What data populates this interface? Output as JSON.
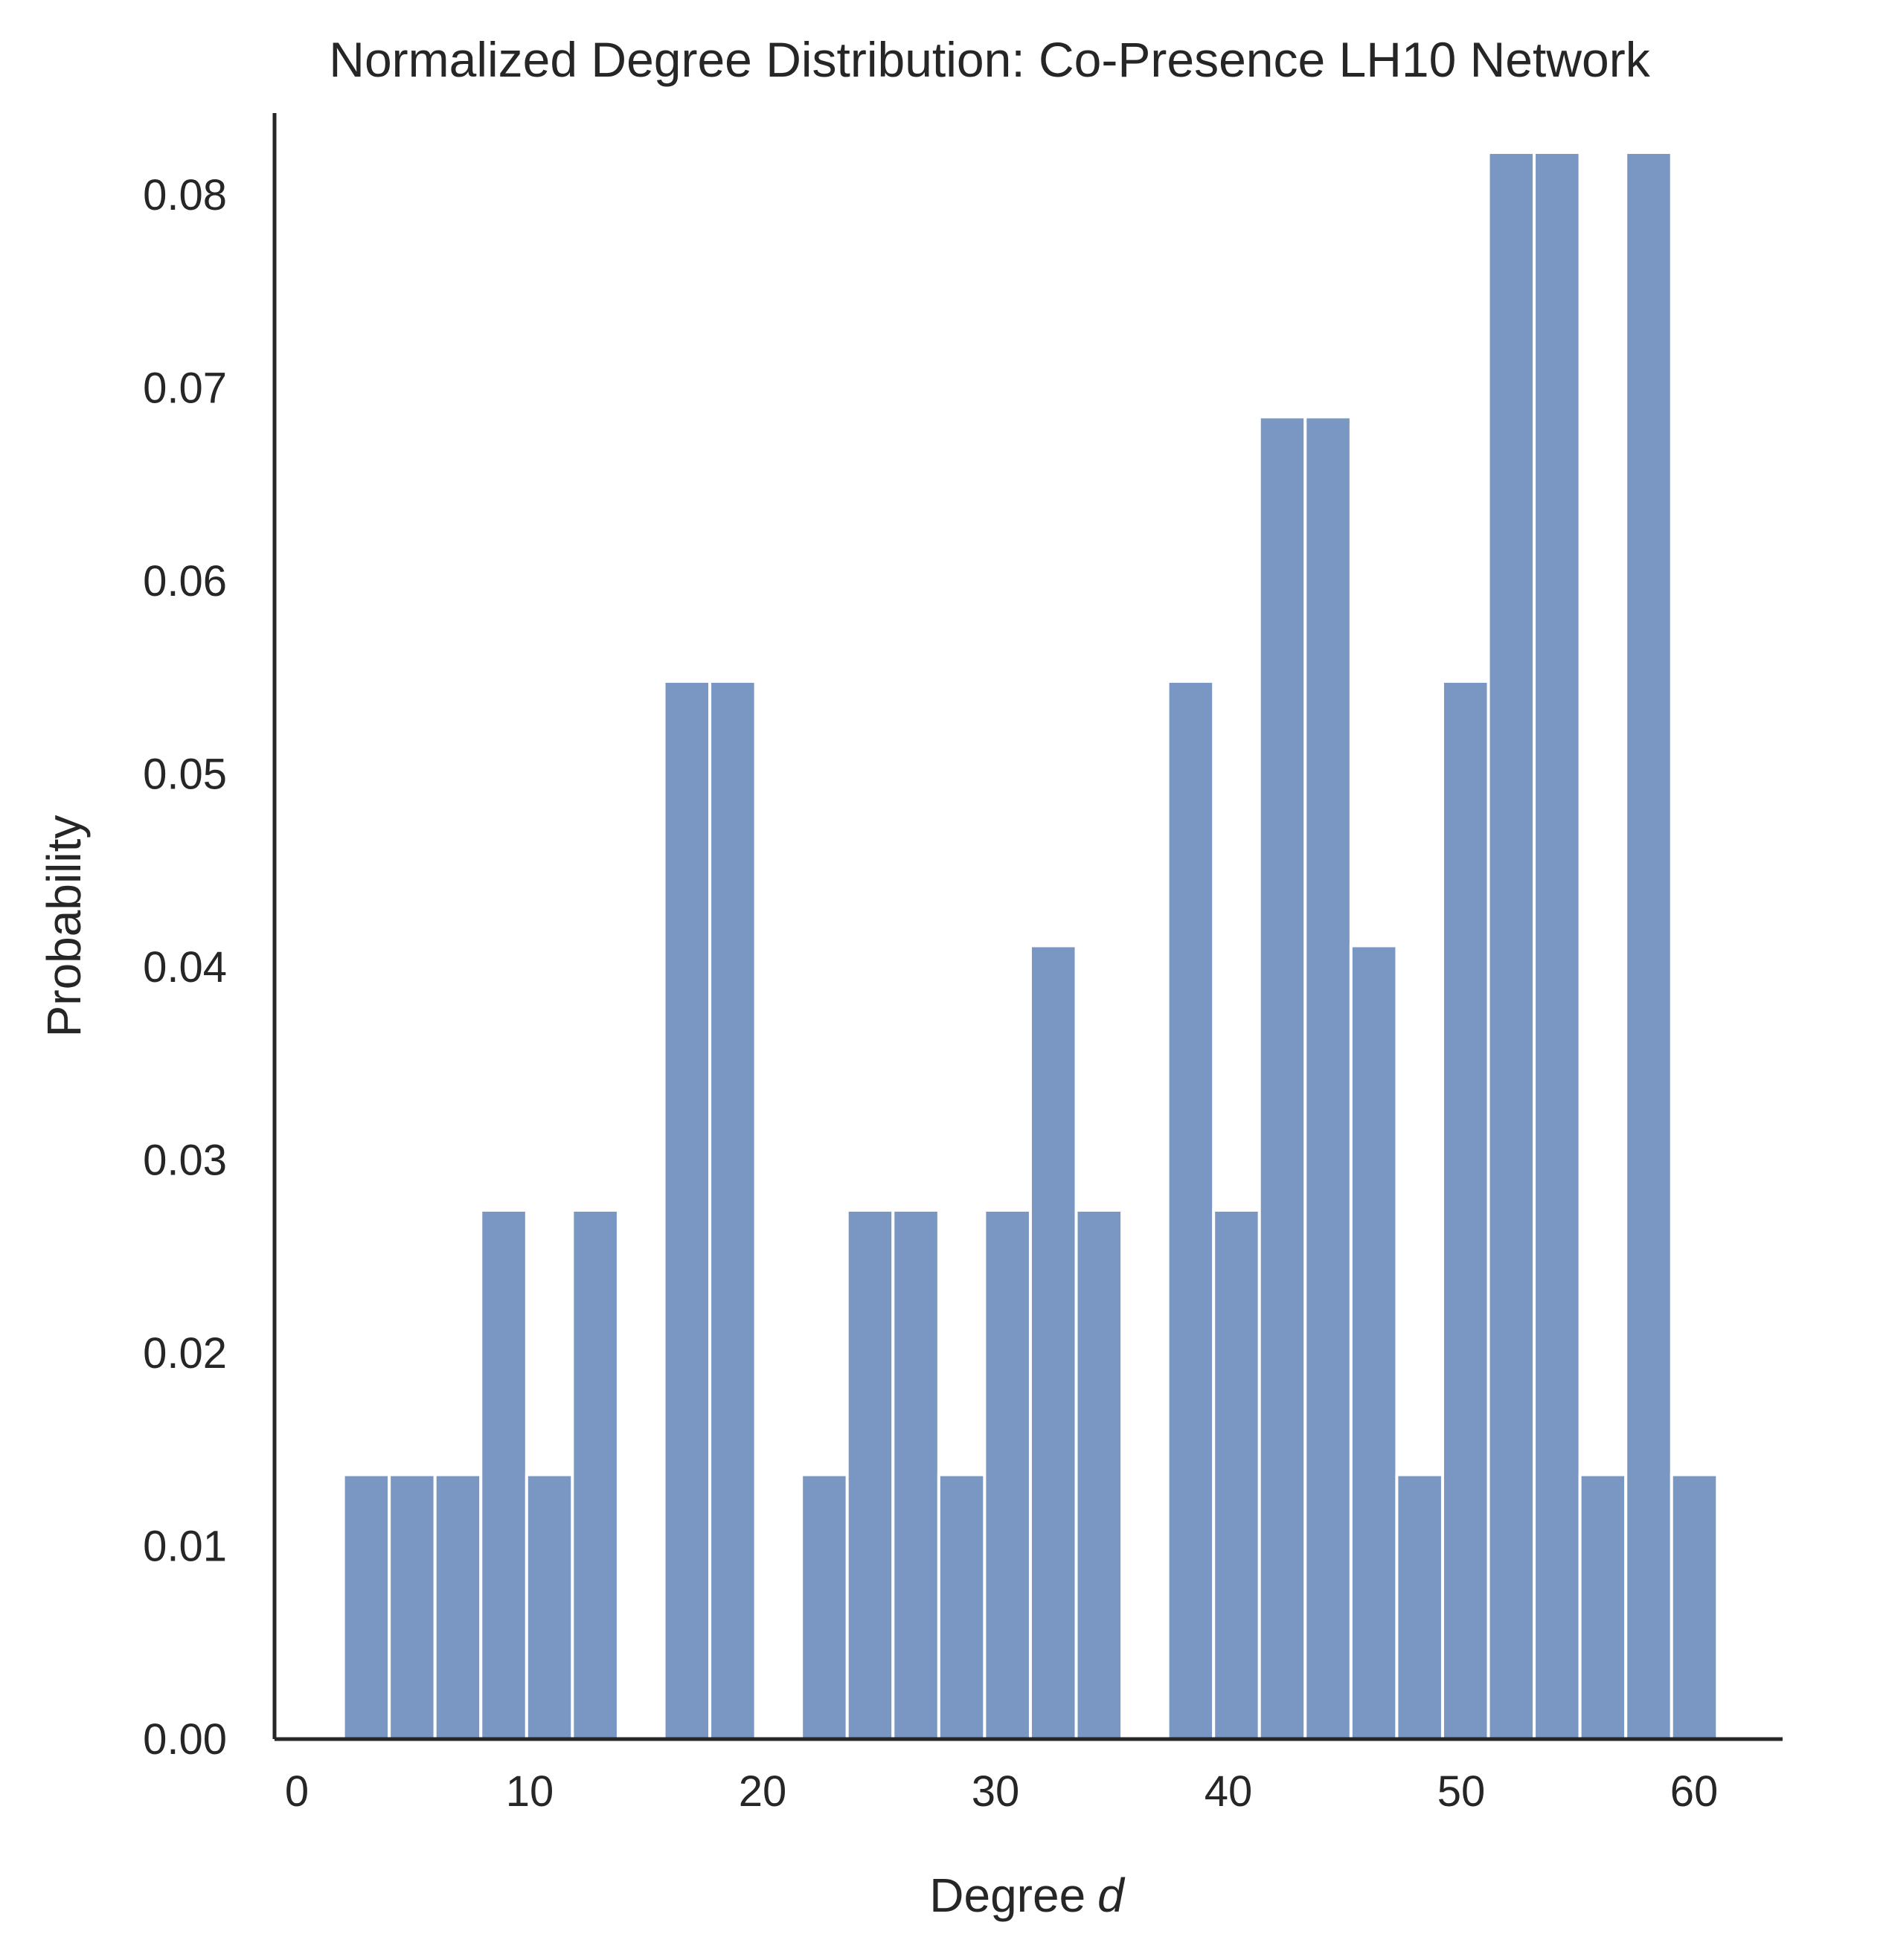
{
  "chart_data": {
    "type": "bar",
    "title": "Normalized Degree Distribution: Co-Presence LH10 Network",
    "xlabel": "Degree",
    "xlabel_var": "d",
    "ylabel": "Probability",
    "xlim": [
      -1,
      64
    ],
    "ylim": [
      0,
      0.086
    ],
    "x_ticks": [
      0,
      10,
      20,
      30,
      40,
      50,
      60
    ],
    "y_ticks": [
      0.0,
      0.01,
      0.02,
      0.03,
      0.04,
      0.05,
      0.06,
      0.07,
      0.08
    ],
    "bin_width": 1.967,
    "bins": [
      {
        "start": 2.0,
        "value": 0.0137
      },
      {
        "start": 3.967,
        "value": 0.0137
      },
      {
        "start": 5.933,
        "value": 0.0137
      },
      {
        "start": 7.9,
        "value": 0.0274
      },
      {
        "start": 9.867,
        "value": 0.0137
      },
      {
        "start": 11.833,
        "value": 0.0274
      },
      {
        "start": 15.767,
        "value": 0.0548
      },
      {
        "start": 17.733,
        "value": 0.0548
      },
      {
        "start": 21.667,
        "value": 0.0137
      },
      {
        "start": 23.633,
        "value": 0.0274
      },
      {
        "start": 25.6,
        "value": 0.0274
      },
      {
        "start": 27.567,
        "value": 0.0137
      },
      {
        "start": 29.533,
        "value": 0.0274
      },
      {
        "start": 31.5,
        "value": 0.0411
      },
      {
        "start": 33.467,
        "value": 0.0274
      },
      {
        "start": 37.4,
        "value": 0.0548
      },
      {
        "start": 39.367,
        "value": 0.0274
      },
      {
        "start": 41.333,
        "value": 0.0685
      },
      {
        "start": 43.3,
        "value": 0.0685
      },
      {
        "start": 45.267,
        "value": 0.0411
      },
      {
        "start": 47.233,
        "value": 0.0137
      },
      {
        "start": 49.2,
        "value": 0.0548
      },
      {
        "start": 51.167,
        "value": 0.0822
      },
      {
        "start": 53.133,
        "value": 0.0822
      },
      {
        "start": 55.1,
        "value": 0.0137
      },
      {
        "start": 57.067,
        "value": 0.0822
      },
      {
        "start": 59.033,
        "value": 0.0137
      }
    ],
    "bar_color": "#7a97c4",
    "grid": false
  }
}
